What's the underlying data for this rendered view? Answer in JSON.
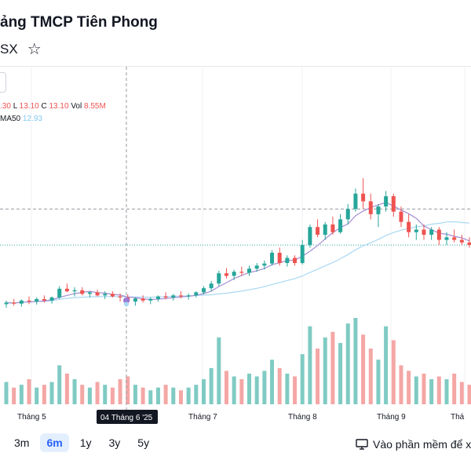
{
  "header": {
    "title": "ảng TMCP Tiên Phong",
    "exchange": "SX",
    "star_icon": "star-icon"
  },
  "legend": {
    "h_partial": ".30",
    "l_label": "L",
    "l_value": "13.10",
    "c_label": "C",
    "c_value": "13.10",
    "vol_label": "Vol",
    "vol_value": "8.55M",
    "ma_label": "MA50",
    "ma_value": "12.93"
  },
  "crosshair": {
    "date_label": "04 Tháng 6 '25"
  },
  "x_axis": {
    "labels": [
      "Tháng 5",
      "Tháng 7",
      "Tháng 8",
      "Tháng 9",
      "Thá"
    ]
  },
  "ranges": [
    {
      "label": "3m",
      "active": false
    },
    {
      "label": "6m",
      "active": true
    },
    {
      "label": "1y",
      "active": false
    },
    {
      "label": "3y",
      "active": false
    },
    {
      "label": "5y",
      "active": false
    }
  ],
  "open_app": {
    "label": "Vào phần mềm để xe",
    "icon": "monitor-icon"
  },
  "colors": {
    "up": "#26a69a",
    "down": "#ef5350",
    "up_vol": "#7fcbc3",
    "down_vol": "#f4a7a5",
    "ma_short": "#a48cd4",
    "ma50": "#a9d8f2"
  },
  "chart_data": {
    "type": "candlestick",
    "price_range": [
      12.4,
      16.6
    ],
    "dashed_price_line": 14.9,
    "last_price_line": 14.2,
    "candles": [
      [
        13.05,
        13.12,
        12.98,
        13.08
      ],
      [
        13.08,
        13.15,
        13.02,
        13.06
      ],
      [
        13.06,
        13.14,
        13.0,
        13.12
      ],
      [
        13.12,
        13.2,
        13.05,
        13.1
      ],
      [
        13.1,
        13.18,
        13.04,
        13.15
      ],
      [
        13.15,
        13.22,
        13.08,
        13.12
      ],
      [
        13.12,
        13.2,
        13.06,
        13.18
      ],
      [
        13.18,
        13.4,
        13.15,
        13.35
      ],
      [
        13.35,
        13.45,
        13.28,
        13.3
      ],
      [
        13.3,
        13.38,
        13.2,
        13.32
      ],
      [
        13.32,
        13.38,
        13.22,
        13.25
      ],
      [
        13.25,
        13.3,
        13.18,
        13.28
      ],
      [
        13.28,
        13.33,
        13.2,
        13.22
      ],
      [
        13.22,
        13.3,
        13.15,
        13.25
      ],
      [
        13.25,
        13.3,
        13.18,
        13.2
      ],
      [
        13.2,
        13.26,
        13.1,
        13.18
      ],
      [
        13.18,
        13.24,
        13.05,
        13.1
      ],
      [
        13.1,
        13.18,
        13.02,
        13.16
      ],
      [
        13.16,
        13.22,
        13.08,
        13.12
      ],
      [
        13.12,
        13.18,
        13.05,
        13.15
      ],
      [
        13.15,
        13.22,
        13.1,
        13.2
      ],
      [
        13.2,
        13.28,
        13.14,
        13.18
      ],
      [
        13.18,
        13.25,
        13.12,
        13.22
      ],
      [
        13.22,
        13.3,
        13.16,
        13.2
      ],
      [
        13.2,
        13.26,
        13.14,
        13.22
      ],
      [
        13.22,
        13.3,
        13.18,
        13.28
      ],
      [
        13.28,
        13.4,
        13.24,
        13.36
      ],
      [
        13.36,
        13.5,
        13.3,
        13.45
      ],
      [
        13.45,
        13.7,
        13.4,
        13.65
      ],
      [
        13.65,
        13.75,
        13.55,
        13.6
      ],
      [
        13.6,
        13.72,
        13.52,
        13.68
      ],
      [
        13.68,
        13.78,
        13.6,
        13.66
      ],
      [
        13.66,
        13.8,
        13.6,
        13.74
      ],
      [
        13.74,
        13.85,
        13.68,
        13.8
      ],
      [
        13.8,
        13.9,
        13.72,
        13.84
      ],
      [
        13.84,
        14.1,
        13.8,
        14.05
      ],
      [
        14.05,
        14.15,
        13.8,
        13.85
      ],
      [
        13.85,
        14.0,
        13.78,
        13.95
      ],
      [
        13.95,
        14.0,
        13.8,
        13.85
      ],
      [
        13.85,
        14.3,
        13.82,
        14.2
      ],
      [
        14.2,
        14.6,
        14.15,
        14.55
      ],
      [
        14.55,
        14.7,
        14.35,
        14.4
      ],
      [
        14.4,
        14.65,
        14.3,
        14.6
      ],
      [
        14.6,
        14.75,
        14.4,
        14.45
      ],
      [
        14.45,
        14.8,
        14.42,
        14.7
      ],
      [
        14.7,
        15.0,
        14.6,
        14.9
      ],
      [
        14.9,
        15.3,
        14.85,
        15.2
      ],
      [
        15.2,
        15.5,
        14.9,
        15.05
      ],
      [
        15.05,
        15.2,
        14.7,
        14.8
      ],
      [
        14.8,
        15.0,
        14.55,
        14.95
      ],
      [
        14.95,
        15.25,
        14.85,
        15.15
      ],
      [
        15.15,
        15.2,
        14.75,
        14.85
      ],
      [
        14.85,
        14.95,
        14.55,
        14.65
      ],
      [
        14.65,
        14.8,
        14.35,
        14.45
      ],
      [
        14.45,
        14.6,
        14.3,
        14.5
      ],
      [
        14.5,
        14.6,
        14.3,
        14.4
      ],
      [
        14.4,
        14.55,
        14.3,
        14.5
      ],
      [
        14.5,
        14.55,
        14.2,
        14.3
      ],
      [
        14.3,
        14.45,
        14.2,
        14.35
      ],
      [
        14.35,
        14.5,
        14.25,
        14.3
      ],
      [
        14.3,
        14.4,
        14.2,
        14.25
      ],
      [
        14.25,
        14.35,
        14.15,
        14.2
      ]
    ],
    "volumes": [
      0.8,
      0.6,
      0.7,
      0.9,
      0.6,
      0.7,
      0.8,
      1.4,
      1.1,
      0.9,
      0.7,
      0.6,
      0.8,
      0.7,
      0.6,
      0.9,
      1.0,
      0.7,
      0.6,
      0.5,
      0.6,
      0.7,
      0.6,
      0.5,
      0.6,
      0.7,
      0.9,
      1.3,
      2.4,
      1.2,
      1.0,
      0.9,
      1.1,
      1.0,
      1.2,
      1.6,
      1.3,
      1.1,
      1.0,
      1.8,
      2.8,
      2.0,
      2.4,
      2.6,
      2.2,
      2.9,
      3.1,
      2.5,
      2.0,
      1.6,
      2.8,
      2.3,
      1.4,
      1.2,
      1.0,
      1.1,
      0.9,
      1.0,
      0.9,
      1.1,
      0.8,
      0.7
    ]
  }
}
